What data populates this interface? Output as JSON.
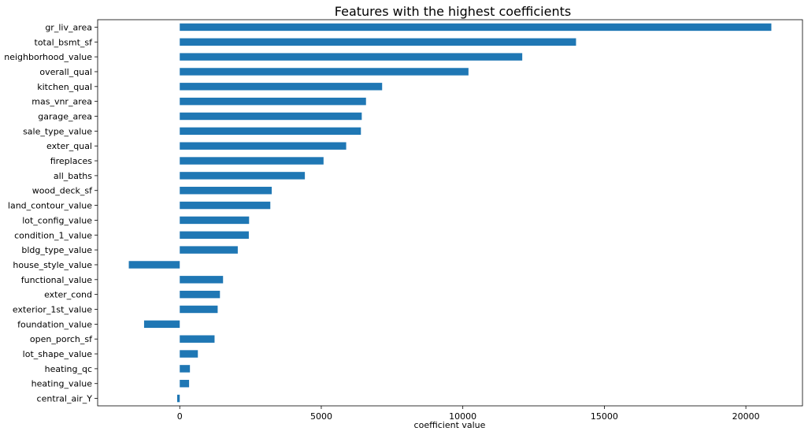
{
  "chart_data": {
    "type": "bar",
    "orientation": "horizontal",
    "title": "Features with the highest coefficients",
    "xlabel": "coefficient value",
    "ylabel": "",
    "xlim": [
      -2900,
      22000
    ],
    "xticks": [
      0,
      5000,
      10000,
      15000,
      20000
    ],
    "grid": false,
    "bar_color": "#1f77b4",
    "categories": [
      "gr_liv_area",
      "total_bsmt_sf",
      "neighborhood_value",
      "overall_qual",
      "kitchen_qual",
      "mas_vnr_area",
      "garage_area",
      "sale_type_value",
      "exter_qual",
      "fireplaces",
      "all_baths",
      "wood_deck_sf",
      "land_contour_value",
      "lot_config_value",
      "condition_1_value",
      "bldg_type_value",
      "house_style_value",
      "functional_value",
      "exter_cond",
      "exterior_1st_value",
      "foundation_value",
      "open_porch_sf",
      "lot_shape_value",
      "heating_qc",
      "heating_value",
      "central_air_Y"
    ],
    "values": [
      20900,
      14000,
      12100,
      10200,
      7150,
      6580,
      6430,
      6400,
      5880,
      5080,
      4420,
      3250,
      3200,
      2450,
      2440,
      2050,
      -1800,
      1530,
      1420,
      1340,
      -1260,
      1230,
      640,
      360,
      330,
      -90
    ]
  }
}
